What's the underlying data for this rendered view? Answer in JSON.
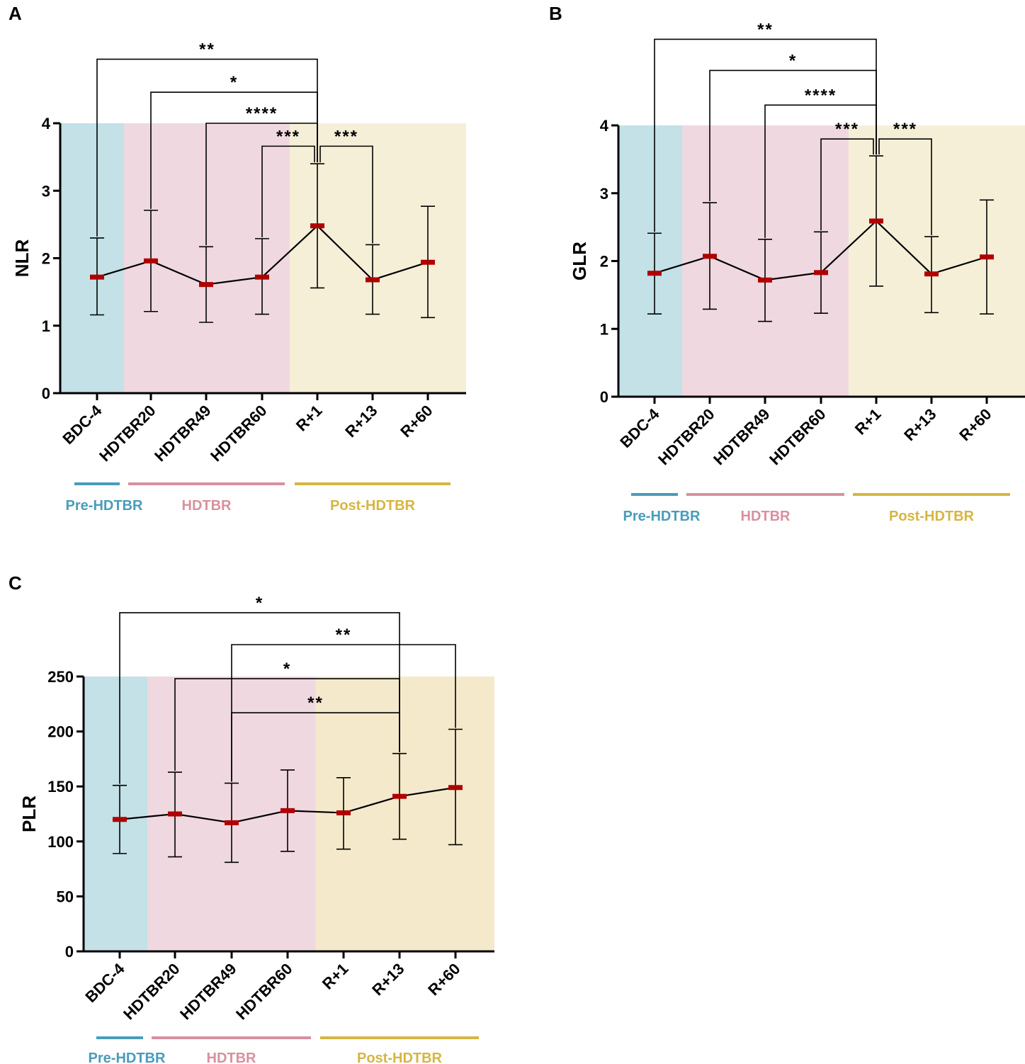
{
  "figure": {
    "phase_colors": {
      "pre": "#c3e1e7",
      "hdtbr": "#f0d8e0",
      "post": "#f6efd8",
      "post_c": "#f4e9cb"
    },
    "group_colors": {
      "pre": "#4a9cba",
      "hdtbr": "#d9909e",
      "post": "#d7b541"
    },
    "marker_color": "#b00000",
    "line_color": "#000000"
  },
  "chart_data": [
    {
      "panel": "A",
      "type": "line",
      "categories": [
        "BDC-4",
        "HDTBR20",
        "HDTBR49",
        "HDTBR60",
        "R+1",
        "R+13",
        "R+60"
      ],
      "values": [
        1.72,
        1.96,
        1.61,
        1.72,
        2.48,
        1.68,
        1.94
      ],
      "error_upper": [
        2.3,
        2.71,
        2.17,
        2.29,
        3.4,
        2.2,
        2.77
      ],
      "error_lower": [
        1.16,
        1.21,
        1.05,
        1.17,
        1.56,
        1.17,
        1.12
      ],
      "ylabel": "NLR",
      "ylim": [
        0,
        4
      ],
      "yticks": [
        "0",
        "1",
        "2",
        "3",
        "4"
      ],
      "phases": [
        {
          "key": "pre",
          "label": "Pre-HDTBR",
          "start": 0,
          "end": 0
        },
        {
          "key": "hdtbr",
          "label": "HDTBR",
          "start": 1,
          "end": 3
        },
        {
          "key": "post",
          "label": "Post-HDTBR",
          "start": 4,
          "end": 6
        }
      ],
      "significance": [
        {
          "from": 0,
          "to": 4,
          "label": "**",
          "level": 4.95
        },
        {
          "from": 1,
          "to": 4,
          "label": "*",
          "level": 4.46
        },
        {
          "from": 2,
          "to": 4,
          "label": "****",
          "level": 4.0
        },
        {
          "from": 3,
          "to": 4,
          "label": "***",
          "level": 3.66,
          "split": "left"
        },
        {
          "from": 4,
          "to": 5,
          "label": "***",
          "level": 3.66,
          "split": "right"
        }
      ]
    },
    {
      "panel": "B",
      "type": "line",
      "categories": [
        "BDC-4",
        "HDTBR20",
        "HDTBR49",
        "HDTBR60",
        "R+1",
        "R+13",
        "R+60"
      ],
      "values": [
        1.82,
        2.07,
        1.72,
        1.83,
        2.59,
        1.81,
        2.06
      ],
      "error_upper": [
        2.41,
        2.86,
        2.32,
        2.43,
        3.55,
        2.36,
        2.9
      ],
      "error_lower": [
        1.22,
        1.29,
        1.11,
        1.23,
        1.63,
        1.24,
        1.22
      ],
      "ylabel": "GLR",
      "ylim": [
        0,
        4
      ],
      "yticks": [
        "0",
        "1",
        "2",
        "3",
        "4"
      ],
      "phases": [
        {
          "key": "pre",
          "label": "Pre-HDTBR",
          "start": 0,
          "end": 0
        },
        {
          "key": "hdtbr",
          "label": "HDTBR",
          "start": 1,
          "end": 3
        },
        {
          "key": "post",
          "label": "Post-HDTBR",
          "start": 4,
          "end": 6
        }
      ],
      "significance": [
        {
          "from": 0,
          "to": 4,
          "label": "**",
          "level": 5.27
        },
        {
          "from": 1,
          "to": 4,
          "label": "*",
          "level": 4.81
        },
        {
          "from": 2,
          "to": 4,
          "label": "****",
          "level": 4.3
        },
        {
          "from": 3,
          "to": 4,
          "label": "***",
          "level": 3.8,
          "split": "left"
        },
        {
          "from": 4,
          "to": 5,
          "label": "***",
          "level": 3.8,
          "split": "right"
        }
      ]
    },
    {
      "panel": "C",
      "type": "line",
      "categories": [
        "BDC-4",
        "HDTBR20",
        "HDTBR49",
        "HDTBR60",
        "R+1",
        "R+13",
        "R+60"
      ],
      "values": [
        120,
        125,
        117,
        128,
        126,
        141,
        149
      ],
      "error_upper": [
        151,
        163,
        153,
        165,
        158,
        180,
        202
      ],
      "error_lower": [
        89,
        86,
        81,
        91,
        93,
        102,
        97
      ],
      "ylabel": "PLR",
      "ylim": [
        0,
        250
      ],
      "yticks": [
        "0",
        "50",
        "100",
        "150",
        "200",
        "250"
      ],
      "phases": [
        {
          "key": "pre",
          "label": "Pre-HDTBR",
          "start": 0,
          "end": 0
        },
        {
          "key": "hdtbr",
          "label": "HDTBR",
          "start": 1,
          "end": 3
        },
        {
          "key": "post_c",
          "label": "Post-HDTBR",
          "start": 4,
          "end": 6
        }
      ],
      "significance": [
        {
          "from": 0,
          "to": 5,
          "label": "*",
          "level": 308
        },
        {
          "from": 2,
          "to": 6,
          "label": "**",
          "level": 279
        },
        {
          "from": 1,
          "to": 5,
          "label": "*",
          "level": 248
        },
        {
          "from": 2,
          "to": 5,
          "label": "**",
          "level": 217
        }
      ]
    }
  ]
}
